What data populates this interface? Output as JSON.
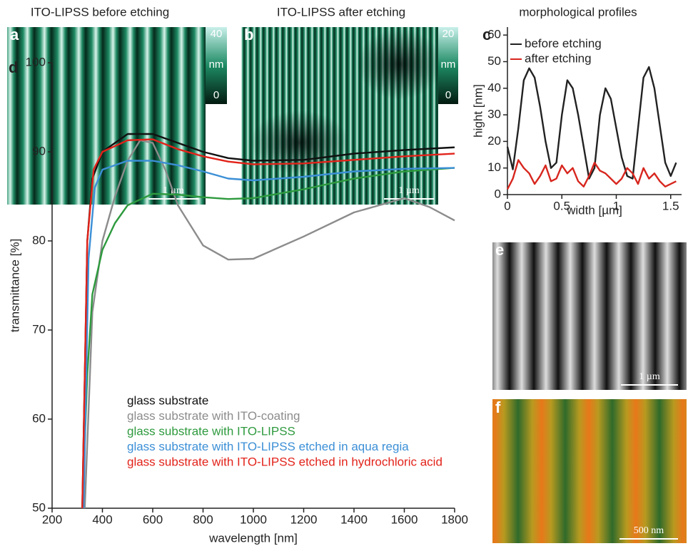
{
  "panels": [
    {
      "label": "a",
      "title": "ITO-LIPSS before etching",
      "colorbar": {
        "ticks": [
          40,
          0
        ],
        "unit": "nm"
      },
      "scale_bar": "1 µm"
    },
    {
      "label": "b",
      "title": "ITO-LIPSS after etching",
      "colorbar": {
        "ticks": [
          20,
          0
        ],
        "unit": "nm"
      },
      "scale_bar": "1 µm"
    },
    {
      "label": "e",
      "scale_bar": "1 µm"
    },
    {
      "label": "f",
      "scale_bar": "500 nm"
    }
  ],
  "chart_data": [
    {
      "type": "line",
      "panel_label": "c",
      "title": "morphological profiles",
      "xlabel": "width [µm]",
      "ylabel": "hight [nm]",
      "x": [
        0,
        0.05,
        0.1,
        0.15,
        0.2,
        0.25,
        0.3,
        0.35,
        0.4,
        0.45,
        0.5,
        0.55,
        0.6,
        0.65,
        0.7,
        0.75,
        0.8,
        0.85,
        0.9,
        0.95,
        1.0,
        1.05,
        1.1,
        1.15,
        1.2,
        1.25,
        1.3,
        1.35,
        1.4,
        1.45,
        1.5,
        1.55
      ],
      "series": [
        {
          "name": "before etching",
          "color": "#222222",
          "values": [
            18,
            9.5,
            25,
            43,
            47.5,
            44,
            33,
            20,
            10,
            12,
            30,
            43,
            40,
            30,
            18,
            6,
            10,
            30,
            40,
            36,
            25,
            14,
            7,
            6,
            25,
            44,
            48,
            40,
            26,
            12,
            7,
            12
          ]
        },
        {
          "name": "after etching",
          "color": "#d7261e",
          "values": [
            2,
            6,
            13,
            10,
            8,
            4,
            7,
            11,
            5,
            6,
            11,
            8,
            10,
            5,
            3,
            7,
            12,
            9,
            8,
            6,
            4,
            6,
            10,
            8,
            4,
            10,
            6,
            8,
            5,
            3,
            4,
            5
          ]
        }
      ],
      "xlim": [
        0,
        1.6
      ],
      "xticks": [
        0,
        0.5,
        1,
        1.5
      ],
      "ylim": [
        0,
        63
      ],
      "yticks": [
        0,
        10,
        20,
        30,
        40,
        50,
        60
      ]
    },
    {
      "type": "line",
      "panel_label": "d",
      "xlabel": "wavelength [nm]",
      "ylabel": "transmittance [%]",
      "series": [
        {
          "name": "glass substrate",
          "color": "#111111",
          "x": [
            320,
            340,
            360,
            400,
            500,
            600,
            700,
            800,
            900,
            1000,
            1200,
            1400,
            1600,
            1800
          ],
          "values": [
            50,
            80,
            87,
            90,
            92,
            92,
            91,
            90,
            89.3,
            89,
            89.1,
            89.8,
            90.2,
            90.5
          ]
        },
        {
          "name": "glass substrate with ITO-coating",
          "color": "#8c8c8c",
          "x": [
            330,
            360,
            400,
            450,
            500,
            550,
            600,
            650,
            700,
            800,
            900,
            1000,
            1200,
            1400,
            1600,
            1700,
            1800
          ],
          "values": [
            50,
            72,
            80,
            85,
            89,
            91.3,
            91,
            88,
            84,
            79.5,
            77.9,
            78,
            80.5,
            83.2,
            84.8,
            83.8,
            82.3
          ]
        },
        {
          "name": "glass substrate with ITO-LIPSS",
          "color": "#2e9a3e",
          "x": [
            320,
            340,
            360,
            400,
            450,
            500,
            600,
            700,
            800,
            900,
            1000,
            1200,
            1400,
            1600,
            1800
          ],
          "values": [
            50,
            65,
            74,
            79,
            82,
            84,
            85.3,
            85.2,
            84.9,
            84.7,
            84.8,
            85.8,
            87,
            87.8,
            88.2
          ]
        },
        {
          "name": "glass substrate with ITO-LIPSS etched in aqua regia",
          "color": "#3b8fd6",
          "x": [
            325,
            345,
            370,
            400,
            500,
            600,
            700,
            800,
            900,
            1000,
            1200,
            1400,
            1600,
            1800
          ],
          "values": [
            50,
            78,
            86,
            88,
            89,
            89,
            88.5,
            87.8,
            87,
            86.8,
            87.2,
            87.8,
            88.1,
            88.2
          ]
        },
        {
          "name": "glass substrate with ITO-LIPSS etched in hydrochloric acid",
          "color": "#e2231a",
          "x": [
            320,
            340,
            365,
            400,
            500,
            600,
            700,
            800,
            900,
            1000,
            1200,
            1400,
            1600,
            1800
          ],
          "values": [
            50,
            80,
            88,
            90,
            91.3,
            91.4,
            90.3,
            89.5,
            88.9,
            88.6,
            88.7,
            89.1,
            89.5,
            89.8
          ]
        }
      ],
      "xlim": [
        200,
        1800
      ],
      "xticks": [
        200,
        400,
        600,
        800,
        1000,
        1200,
        1400,
        1600,
        1800
      ],
      "ylim": [
        50,
        100
      ],
      "yticks": [
        50,
        60,
        70,
        80,
        90,
        100
      ]
    }
  ]
}
